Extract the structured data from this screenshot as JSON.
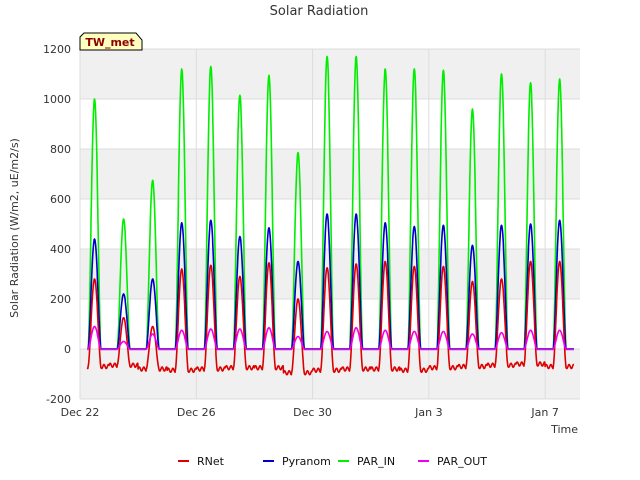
{
  "chart_data": {
    "type": "line",
    "title": "Solar Radiation",
    "xlabel": "Time",
    "ylabel": "Solar Radiation (W/m2, uE/m2/s)",
    "badge": "TW_met",
    "xlim": [
      0,
      17.2
    ],
    "ylim": [
      -200,
      1200
    ],
    "yticks": [
      -200,
      0,
      200,
      400,
      600,
      800,
      1000,
      1200
    ],
    "xticks": [
      {
        "label": "Dec 22",
        "x": 0
      },
      {
        "label": "Dec 26",
        "x": 4
      },
      {
        "label": "Dec 30",
        "x": 8
      },
      {
        "label": "Jan 3",
        "x": 12
      },
      {
        "label": "Jan 7",
        "x": 16
      }
    ],
    "grid": true,
    "legend_position": "bottom",
    "peaks": {
      "day_start": [
        0,
        1,
        2,
        3,
        4,
        5,
        6,
        7,
        8,
        9,
        10,
        11,
        12,
        13,
        14,
        15,
        16
      ],
      "RNet": [
        280,
        125,
        90,
        320,
        335,
        290,
        345,
        200,
        325,
        340,
        350,
        330,
        330,
        270,
        280,
        350,
        350
      ],
      "Pyranom": [
        440,
        220,
        280,
        505,
        515,
        450,
        485,
        350,
        540,
        540,
        505,
        490,
        495,
        415,
        495,
        500,
        515
      ],
      "PAR_IN": [
        1000,
        520,
        675,
        1120,
        1130,
        1015,
        1095,
        785,
        1170,
        1170,
        1120,
        1120,
        1115,
        960,
        1100,
        1065,
        1080
      ],
      "PAR_OUT": [
        90,
        30,
        60,
        75,
        80,
        80,
        85,
        50,
        70,
        85,
        75,
        70,
        70,
        60,
        65,
        75,
        75
      ],
      "RNet_night": [
        -70,
        -65,
        -80,
        -85,
        -80,
        -75,
        -75,
        -95,
        -85,
        -80,
        -80,
        -85,
        -75,
        -70,
        -65,
        -60,
        -70
      ]
    },
    "series": [
      {
        "name": "RNet",
        "color": "#dd0000"
      },
      {
        "name": "Pyranom",
        "color": "#0000cc"
      },
      {
        "name": "PAR_IN",
        "color": "#00ee00"
      },
      {
        "name": "PAR_OUT",
        "color": "#ee00ee"
      }
    ]
  }
}
